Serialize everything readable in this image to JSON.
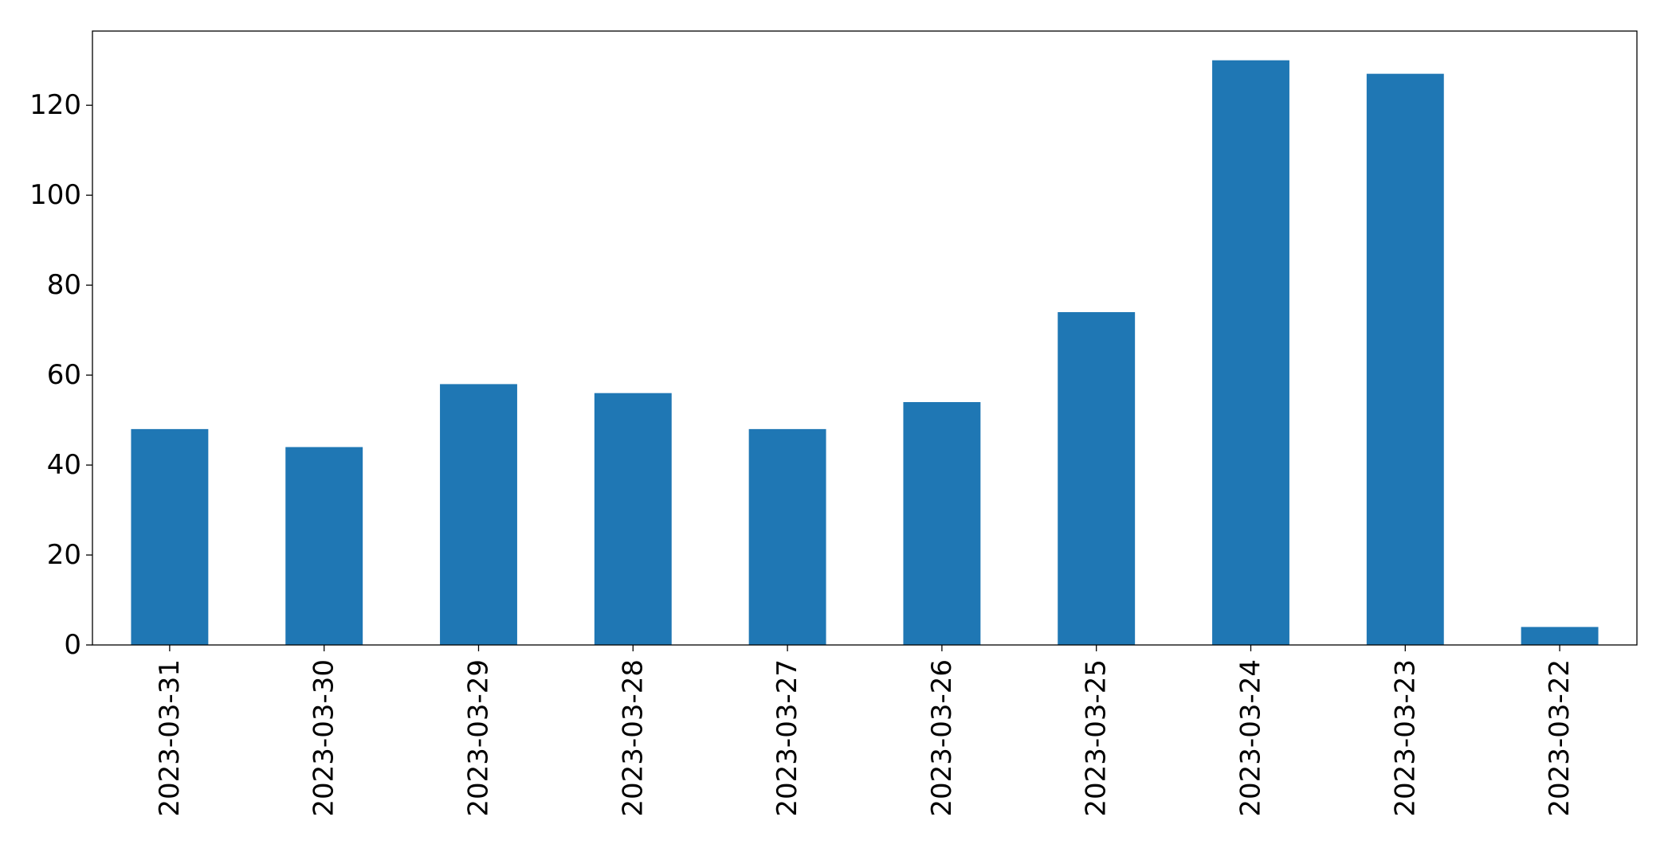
{
  "chart_data": {
    "type": "bar",
    "title": "",
    "xlabel": "",
    "ylabel": "",
    "categories": [
      "2023-03-31",
      "2023-03-30",
      "2023-03-29",
      "2023-03-28",
      "2023-03-27",
      "2023-03-26",
      "2023-03-25",
      "2023-03-24",
      "2023-03-23",
      "2023-03-22"
    ],
    "values": [
      48,
      44,
      58,
      56,
      48,
      54,
      74,
      130,
      127,
      4
    ],
    "ylim": [
      0,
      136.5
    ],
    "yticks": [
      0,
      20,
      40,
      60,
      80,
      100,
      120
    ],
    "grid": false,
    "legend": "none",
    "bar_color": "#1f77b4"
  }
}
